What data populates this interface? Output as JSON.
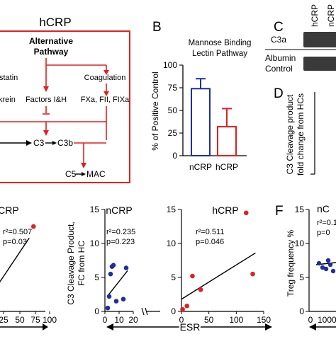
{
  "colors": {
    "red": "#e02020",
    "blue": "#1f2f9a",
    "black": "#000000",
    "blot": "#3a3a3a"
  },
  "panel_a": {
    "title": "hCRP",
    "header_line1": "Alternative",
    "header_line2": "Pathway",
    "labels": [
      "statin",
      "Coagulation",
      "Factors I&H",
      "krein",
      "FXa, FII, FIXa",
      "C3",
      "C3b",
      "C5",
      "MAC"
    ]
  },
  "panel_b": {
    "letter": "B",
    "title_line1": "Mannose Binding",
    "title_line2": "Lectin Pathway",
    "ylabel": "% of  Positive Control"
  },
  "panel_c": {
    "letter": "C",
    "lane_labels": [
      "hCRP",
      "nCRP"
    ],
    "row1": "C3a",
    "row2_line1": "Albumin",
    "row2_line2": "Control"
  },
  "panel_d": {
    "letter": "D",
    "ylabel_line1": "C3 Cleavage product",
    "ylabel_line2": "fold change from HCs"
  },
  "panel_e": {
    "ylabel_line1": "C3 Cleavage  Product,",
    "ylabel_line2": "FC from HC",
    "xlabel": "ESR"
  },
  "panel_f": {
    "letter": "F",
    "ylabel": "Treg frequency %",
    "title": "nC",
    "stat1": "r²=0.1",
    "stat2": "p=0",
    "xticks": [
      "0",
      "1000"
    ],
    "yticks": [
      "0",
      "5",
      "10",
      "15"
    ]
  },
  "chart_data": [
    {
      "type": "bar",
      "panel": "B",
      "categories": [
        "nCRP",
        "hCRP"
      ],
      "values": [
        74,
        32
      ],
      "errors": [
        11,
        20
      ],
      "colors": [
        "#1f2f9a",
        "#e02020"
      ],
      "ylim": [
        0,
        100
      ],
      "yticks": [
        "0",
        "25",
        "50",
        "75",
        "100"
      ]
    },
    {
      "type": "scatter",
      "panel": "E-left",
      "title": "hCRP",
      "stat1": "r²=0.507",
      "stat2": "p=0.03",
      "xlim": [
        0,
        100
      ],
      "xticks": [
        "25",
        "50",
        "75",
        "100"
      ],
      "points": [
        [
          5,
          2.5
        ],
        [
          8,
          1.8
        ],
        [
          12,
          4.5
        ],
        [
          4,
          1.0
        ],
        [
          78,
          12.5
        ]
      ],
      "fit": [
        [
          0,
          2.5
        ],
        [
          70,
          10.8
        ]
      ]
    },
    {
      "type": "scatter",
      "panel": "E-mid",
      "title": "nCRP",
      "stat1": "r²=0.235",
      "stat2": "p=0.223",
      "xlim": [
        0,
        20
      ],
      "ylim": [
        0,
        15
      ],
      "xticks": [
        "0",
        "10",
        "20"
      ],
      "yticks": [
        "0",
        "5",
        "10",
        "15"
      ],
      "points": [
        [
          3,
          2.2
        ],
        [
          5,
          6.6
        ],
        [
          6,
          6.8
        ],
        [
          4,
          5.5
        ],
        [
          8,
          1.5
        ],
        [
          13,
          1.8
        ],
        [
          2,
          0.5
        ],
        [
          15,
          6.4
        ]
      ],
      "fit": [
        [
          2,
          2.3
        ],
        [
          16,
          6.0
        ]
      ]
    },
    {
      "type": "scatter",
      "panel": "E-right",
      "title": "hCRP",
      "stat1": "r²=0.511",
      "stat2": "p=0.046",
      "xlim": [
        0,
        150
      ],
      "ylim": [
        0,
        15
      ],
      "xticks": [
        "0",
        "50",
        "100",
        "150"
      ],
      "yticks": [
        "0",
        "5",
        "10",
        "15"
      ],
      "points": [
        [
          2,
          0.3
        ],
        [
          10,
          0.8
        ],
        [
          20,
          5.2
        ],
        [
          35,
          3.2
        ],
        [
          118,
          14.5
        ],
        [
          130,
          5.5
        ]
      ],
      "fit": [
        [
          0,
          1.8
        ],
        [
          135,
          8.6
        ]
      ]
    }
  ]
}
